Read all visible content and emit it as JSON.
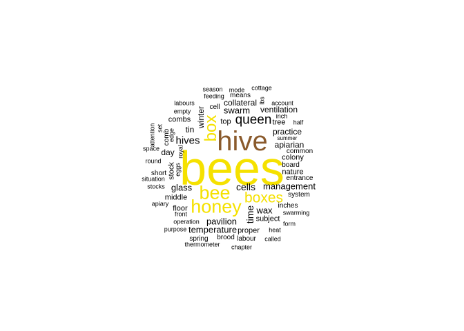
{
  "colors": {
    "yellow": "#f5e100",
    "brown": "#8a5a2c",
    "black": "#000000"
  },
  "words": [
    {
      "text": "bees",
      "color": "yellow",
      "vertical": false
    },
    {
      "text": "hive",
      "color": "brown",
      "vertical": false
    },
    {
      "text": "honey",
      "color": "yellow",
      "vertical": false
    },
    {
      "text": "bee",
      "color": "yellow",
      "vertical": false
    },
    {
      "text": "box",
      "color": "yellow",
      "vertical": true
    },
    {
      "text": "boxes",
      "color": "yellow",
      "vertical": false
    },
    {
      "text": "queen",
      "color": "black",
      "vertical": false
    },
    {
      "text": "hives",
      "color": "black",
      "vertical": false
    },
    {
      "text": "cells",
      "color": "black",
      "vertical": false
    },
    {
      "text": "management",
      "color": "black",
      "vertical": false
    },
    {
      "text": "glass",
      "color": "black",
      "vertical": false
    },
    {
      "text": "swarm",
      "color": "black",
      "vertical": false
    },
    {
      "text": "time",
      "color": "black",
      "vertical": true
    },
    {
      "text": "wax",
      "color": "black",
      "vertical": false
    },
    {
      "text": "pavilion",
      "color": "black",
      "vertical": false
    },
    {
      "text": "temperature",
      "color": "black",
      "vertical": false
    },
    {
      "text": "collateral",
      "color": "black",
      "vertical": false
    },
    {
      "text": "ventilation",
      "color": "black",
      "vertical": false
    },
    {
      "text": "practice",
      "color": "black",
      "vertical": false
    },
    {
      "text": "apiarian",
      "color": "black",
      "vertical": false
    },
    {
      "text": "colony",
      "color": "black",
      "vertical": false
    },
    {
      "text": "nature",
      "color": "black",
      "vertical": false
    },
    {
      "text": "combs",
      "color": "black",
      "vertical": false
    },
    {
      "text": "winter",
      "color": "black",
      "vertical": true
    },
    {
      "text": "day",
      "color": "black",
      "vertical": false
    },
    {
      "text": "stock",
      "color": "black",
      "vertical": true
    },
    {
      "text": "tin",
      "color": "black",
      "vertical": false
    },
    {
      "text": "top",
      "color": "black",
      "vertical": false
    },
    {
      "text": "tree",
      "color": "black",
      "vertical": false
    },
    {
      "text": "middle",
      "color": "black",
      "vertical": false
    },
    {
      "text": "floor",
      "color": "black",
      "vertical": false
    },
    {
      "text": "subject",
      "color": "black",
      "vertical": false
    },
    {
      "text": "proper",
      "color": "black",
      "vertical": false
    },
    {
      "text": "system",
      "color": "black",
      "vertical": false
    },
    {
      "text": "inches",
      "color": "black",
      "vertical": false
    },
    {
      "text": "brood",
      "color": "black",
      "vertical": false
    },
    {
      "text": "labour",
      "color": "black",
      "vertical": false
    },
    {
      "text": "spring",
      "color": "black",
      "vertical": false
    },
    {
      "text": "cell",
      "color": "black",
      "vertical": false
    },
    {
      "text": "means",
      "color": "black",
      "vertical": false
    },
    {
      "text": "common",
      "color": "black",
      "vertical": false
    },
    {
      "text": "board",
      "color": "black",
      "vertical": false
    },
    {
      "text": "entrance",
      "color": "black",
      "vertical": false
    },
    {
      "text": "stocks",
      "color": "black",
      "vertical": false
    },
    {
      "text": "short",
      "color": "black",
      "vertical": false
    },
    {
      "text": "situation",
      "color": "black",
      "vertical": false
    },
    {
      "text": "round",
      "color": "black",
      "vertical": false
    },
    {
      "text": "space",
      "color": "black",
      "vertical": false
    },
    {
      "text": "comb",
      "color": "black",
      "vertical": true
    },
    {
      "text": "eggs",
      "color": "black",
      "vertical": true
    },
    {
      "text": "royal",
      "color": "black",
      "vertical": true
    },
    {
      "text": "edge",
      "color": "black",
      "vertical": true
    },
    {
      "text": "set",
      "color": "black",
      "vertical": true
    },
    {
      "text": "attention",
      "color": "black",
      "vertical": true
    },
    {
      "text": "empty",
      "color": "black",
      "vertical": false
    },
    {
      "text": "labours",
      "color": "black",
      "vertical": false
    },
    {
      "text": "feeding",
      "color": "black",
      "vertical": false
    },
    {
      "text": "season",
      "color": "black",
      "vertical": false
    },
    {
      "text": "mode",
      "color": "black",
      "vertical": false
    },
    {
      "text": "cottage",
      "color": "black",
      "vertical": false
    },
    {
      "text": "lbs",
      "color": "black",
      "vertical": true
    },
    {
      "text": "account",
      "color": "black",
      "vertical": false
    },
    {
      "text": "inch",
      "color": "black",
      "vertical": false
    },
    {
      "text": "half",
      "color": "black",
      "vertical": false
    },
    {
      "text": "summer",
      "color": "black",
      "vertical": false
    },
    {
      "text": "apiary",
      "color": "black",
      "vertical": false
    },
    {
      "text": "front",
      "color": "black",
      "vertical": false
    },
    {
      "text": "operation",
      "color": "black",
      "vertical": false
    },
    {
      "text": "purpose",
      "color": "black",
      "vertical": false
    },
    {
      "text": "thermometer",
      "color": "black",
      "vertical": false
    },
    {
      "text": "chapter",
      "color": "black",
      "vertical": false
    },
    {
      "text": "called",
      "color": "black",
      "vertical": false
    },
    {
      "text": "heat",
      "color": "black",
      "vertical": false
    },
    {
      "text": "form",
      "color": "black",
      "vertical": false
    },
    {
      "text": "swarming",
      "color": "black",
      "vertical": false
    }
  ]
}
